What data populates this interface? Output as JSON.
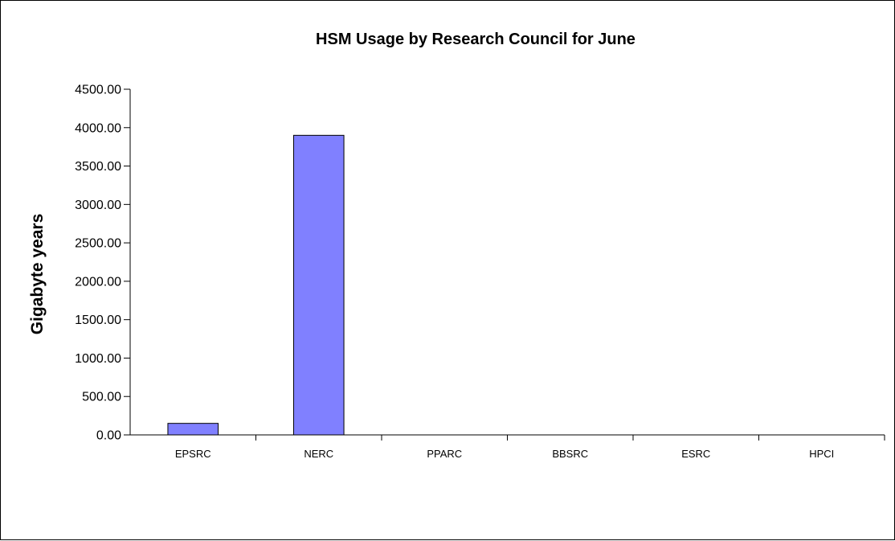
{
  "chart_data": {
    "type": "bar",
    "title": "HSM Usage by Research Council for June",
    "xlabel": "",
    "ylabel": "Gigabyte years",
    "categories": [
      "EPSRC",
      "NERC",
      "PPARC",
      "BBSRC",
      "ESRC",
      "HPCI"
    ],
    "values": [
      150,
      3900,
      0,
      0,
      0,
      0
    ],
    "ylim": [
      0,
      4500
    ],
    "yticks": [
      "0.00",
      "500.00",
      "1000.00",
      "1500.00",
      "2000.00",
      "2500.00",
      "3000.00",
      "3500.00",
      "4000.00",
      "4500.00"
    ],
    "grid": false,
    "legend": false,
    "colors": {
      "bar_fill": "#8080ff",
      "bar_stroke": "#000000",
      "axis": "#000000"
    }
  }
}
